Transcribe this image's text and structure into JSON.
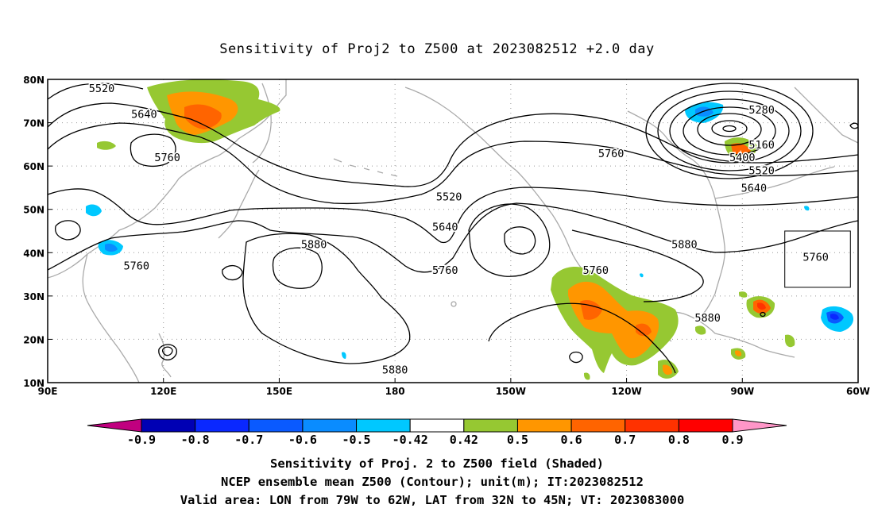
{
  "chart_data": {
    "type": "contour",
    "title": "Sensitivity of Proj2 to Z500 at 2023082512 +2.0 day",
    "x_ticks": [
      "90E",
      "120E",
      "150E",
      "180",
      "150W",
      "120W",
      "90W",
      "60W"
    ],
    "y_ticks": [
      "80N",
      "70N",
      "60N",
      "50N",
      "40N",
      "30N",
      "20N",
      "10N"
    ],
    "x_range": [
      90,
      300
    ],
    "y_range": [
      10,
      80
    ],
    "contour_labels": [
      {
        "text": "5520",
        "lon": 104,
        "lat": 78
      },
      {
        "text": "5640",
        "lon": 115,
        "lat": 72
      },
      {
        "text": "5760",
        "lon": 121,
        "lat": 62
      },
      {
        "text": "5520",
        "lon": 194,
        "lat": 53
      },
      {
        "text": "5640",
        "lon": 193,
        "lat": 46
      },
      {
        "text": "5880",
        "lon": 159,
        "lat": 42
      },
      {
        "text": "5760",
        "lon": 113,
        "lat": 37
      },
      {
        "text": "5760",
        "lon": 193,
        "lat": 36
      },
      {
        "text": "5760",
        "lon": 232,
        "lat": 36
      },
      {
        "text": "5760",
        "lon": 236,
        "lat": 63
      },
      {
        "text": "5880",
        "lon": 255,
        "lat": 42
      },
      {
        "text": "5880",
        "lon": 261,
        "lat": 25
      },
      {
        "text": "5880",
        "lon": 180,
        "lat": 13
      },
      {
        "text": "5280",
        "lon": 275,
        "lat": 73
      },
      {
        "text": "5160",
        "lon": 275,
        "lat": 65
      },
      {
        "text": "5400",
        "lon": 270,
        "lat": 62
      },
      {
        "text": "5520",
        "lon": 275,
        "lat": 59
      },
      {
        "text": "5640",
        "lon": 273,
        "lat": 55
      },
      {
        "text": "5760",
        "lon": 289,
        "lat": 39
      }
    ],
    "valid_box": {
      "lon_min": 281,
      "lon_max": 298,
      "lat_min": 32,
      "lat_max": 45
    },
    "colorbar": {
      "labels": [
        "-0.9",
        "-0.8",
        "-0.7",
        "-0.6",
        "-0.5",
        "-0.42",
        "0.42",
        "0.5",
        "0.6",
        "0.7",
        "0.8",
        "0.9"
      ],
      "colors": [
        "#c0007f",
        "#0000b4",
        "#0a28ff",
        "#0a5aff",
        "#0a8cff",
        "#00c8ff",
        "#ffffff",
        "#96c832",
        "#ff9600",
        "#ff6400",
        "#ff3200",
        "#ff0000",
        "#ff96c8"
      ]
    },
    "footer": [
      "Sensitivity of Proj. 2 to Z500 field (Shaded)",
      "NCEP ensemble mean Z500 (Contour); unit(m); IT:2023082512",
      "Valid area: LON from 79W to 62W, LAT from 32N to 45N; VT: 2023083000"
    ]
  }
}
